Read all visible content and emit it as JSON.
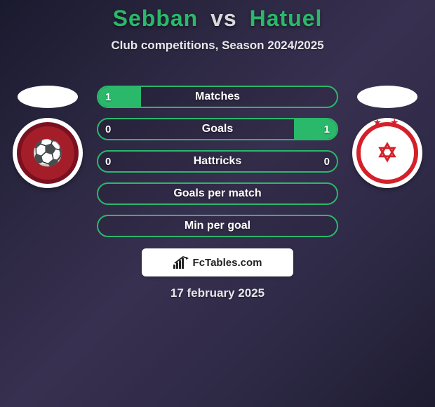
{
  "header": {
    "player1": "Sebban",
    "vs": "vs",
    "player2": "Hatuel",
    "subtitle": "Club competitions, Season 2024/2025",
    "p1_color": "#2ab86a",
    "vs_color": "#d8d8dc",
    "p2_color": "#2ab86a"
  },
  "crests": {
    "left": {
      "bg": "#ffffff",
      "ring": "#7a1020",
      "inner_bg": "#a41e2a",
      "glyph": "⚽",
      "glyph_color": "#e8c24a"
    },
    "right": {
      "bg": "#ffffff",
      "ring": "#d4202a",
      "inner_bg": "#ffffff",
      "glyph": "✡",
      "glyph_color": "#d4202a",
      "stars": "★ ★",
      "stars_color": "#d4202a"
    }
  },
  "stats": {
    "border_color": "#2ab86a",
    "fill_color": "#2ab86a",
    "rows": [
      {
        "label": "Matches",
        "left": "1",
        "right": "",
        "left_pct": 18,
        "right_pct": 0
      },
      {
        "label": "Goals",
        "left": "0",
        "right": "1",
        "left_pct": 0,
        "right_pct": 18
      },
      {
        "label": "Hattricks",
        "left": "0",
        "right": "0",
        "left_pct": 0,
        "right_pct": 0
      },
      {
        "label": "Goals per match",
        "left": "",
        "right": "",
        "left_pct": 0,
        "right_pct": 0
      },
      {
        "label": "Min per goal",
        "left": "",
        "right": "",
        "left_pct": 0,
        "right_pct": 0
      }
    ]
  },
  "credit": {
    "text": "FcTables.com"
  },
  "date": "17 february 2025"
}
